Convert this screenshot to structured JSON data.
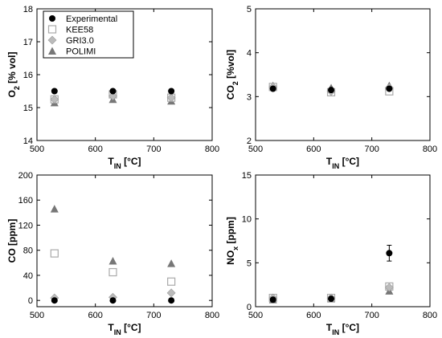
{
  "chart_data": [
    {
      "type": "scatter",
      "panel": "top-left",
      "xlabel": {
        "main": "T",
        "sub": "IN",
        "unit": " [°C]"
      },
      "ylabel": {
        "main": "O",
        "sub": "2",
        "unit": " [% vol]"
      },
      "xlim": [
        500,
        800
      ],
      "ylim": [
        14,
        18
      ],
      "xticks": [
        "500",
        "600",
        "700",
        "800"
      ],
      "yticks": [
        "14",
        "15",
        "16",
        "17",
        "18"
      ],
      "legend": {
        "placement": "top-left"
      },
      "series": [
        {
          "name": "Experimental",
          "marker": "circle",
          "color": "#000000",
          "x": [
            530,
            630,
            730
          ],
          "y": [
            15.5,
            15.5,
            15.5
          ]
        },
        {
          "name": "KEE58",
          "marker": "square-open",
          "color": "#aaaaaa",
          "x": [
            530,
            630,
            730
          ],
          "y": [
            15.25,
            15.4,
            15.3
          ]
        },
        {
          "name": "GRI3.0",
          "marker": "diamond",
          "color": "#bbbbbb",
          "x": [
            530,
            630,
            730
          ],
          "y": [
            15.25,
            15.35,
            15.3
          ]
        },
        {
          "name": "POLIMI",
          "marker": "triangle",
          "color": "#777777",
          "x": [
            530,
            630,
            730
          ],
          "y": [
            15.15,
            15.25,
            15.2
          ]
        }
      ]
    },
    {
      "type": "scatter",
      "panel": "top-right",
      "xlabel": {
        "main": "T",
        "sub": "IN",
        "unit": " [°C]"
      },
      "ylabel": {
        "main": "CO",
        "sub": "2",
        "unit": " [%vol]"
      },
      "xlim": [
        500,
        800
      ],
      "ylim": [
        2,
        5
      ],
      "xticks": [
        "500",
        "600",
        "700",
        "800"
      ],
      "yticks": [
        "2",
        "3",
        "4",
        "5"
      ],
      "series": [
        {
          "name": "Experimental",
          "marker": "circle",
          "color": "#000000",
          "x": [
            530,
            630,
            730
          ],
          "y": [
            3.18,
            3.15,
            3.18
          ]
        },
        {
          "name": "KEE58",
          "marker": "square-open",
          "color": "#aaaaaa",
          "x": [
            530,
            630,
            730
          ],
          "y": [
            3.22,
            3.1,
            3.12
          ]
        },
        {
          "name": "GRI3.0",
          "marker": "diamond",
          "color": "#bbbbbb",
          "x": [
            530,
            630,
            730
          ],
          "y": [
            3.22,
            3.12,
            3.2
          ]
        },
        {
          "name": "POLIMI",
          "marker": "triangle",
          "color": "#777777",
          "x": [
            530,
            630,
            730
          ],
          "y": [
            3.25,
            3.2,
            3.25
          ]
        }
      ]
    },
    {
      "type": "scatter",
      "panel": "bottom-left",
      "xlabel": {
        "main": "T",
        "sub": "IN",
        "unit": " [°C]"
      },
      "ylabel": {
        "main": "CO",
        "sub": "",
        "unit": " [ppm]"
      },
      "xlim": [
        500,
        800
      ],
      "ylim": [
        -10,
        200
      ],
      "xticks": [
        "500",
        "600",
        "700",
        "800"
      ],
      "yticks": [
        "0",
        "40",
        "80",
        "120",
        "160",
        "200"
      ],
      "series": [
        {
          "name": "Experimental",
          "marker": "circle",
          "color": "#000000",
          "x": [
            530,
            630,
            730
          ],
          "y": [
            0,
            0,
            0
          ]
        },
        {
          "name": "KEE58",
          "marker": "square-open",
          "color": "#aaaaaa",
          "x": [
            530,
            630,
            730
          ],
          "y": [
            75,
            45,
            30
          ]
        },
        {
          "name": "GRI3.0",
          "marker": "diamond",
          "color": "#bbbbbb",
          "x": [
            530,
            630,
            730
          ],
          "y": [
            4,
            5,
            12
          ]
        },
        {
          "name": "POLIMI",
          "marker": "triangle",
          "color": "#777777",
          "x": [
            530,
            630,
            730
          ],
          "y": [
            146,
            63,
            59
          ]
        }
      ]
    },
    {
      "type": "scatter",
      "panel": "bottom-right",
      "xlabel": {
        "main": "T",
        "sub": "IN",
        "unit": " [°C]"
      },
      "ylabel": {
        "main": "NO",
        "sub": "x",
        "unit": " [ppm]"
      },
      "xlim": [
        500,
        800
      ],
      "ylim": [
        0,
        15
      ],
      "xticks": [
        "500",
        "600",
        "700",
        "800"
      ],
      "yticks": [
        "0",
        "5",
        "10",
        "15"
      ],
      "series": [
        {
          "name": "Experimental",
          "marker": "circle",
          "color": "#000000",
          "x": [
            530,
            630,
            730
          ],
          "y": [
            0.8,
            0.9,
            6.1
          ],
          "err": [
            0.2,
            0.2,
            0.9
          ]
        },
        {
          "name": "KEE58",
          "marker": "square-open",
          "color": "#aaaaaa",
          "x": [
            530,
            630,
            730
          ],
          "y": [
            1.0,
            1.0,
            2.3
          ]
        },
        {
          "name": "GRI3.0",
          "marker": "diamond",
          "color": "#bbbbbb",
          "x": [
            530,
            630,
            730
          ],
          "y": [
            1.0,
            1.0,
            2.2
          ]
        },
        {
          "name": "POLIMI",
          "marker": "triangle",
          "color": "#777777",
          "x": [
            530,
            630,
            730
          ],
          "y": [
            0.8,
            0.9,
            1.8
          ]
        }
      ]
    }
  ]
}
